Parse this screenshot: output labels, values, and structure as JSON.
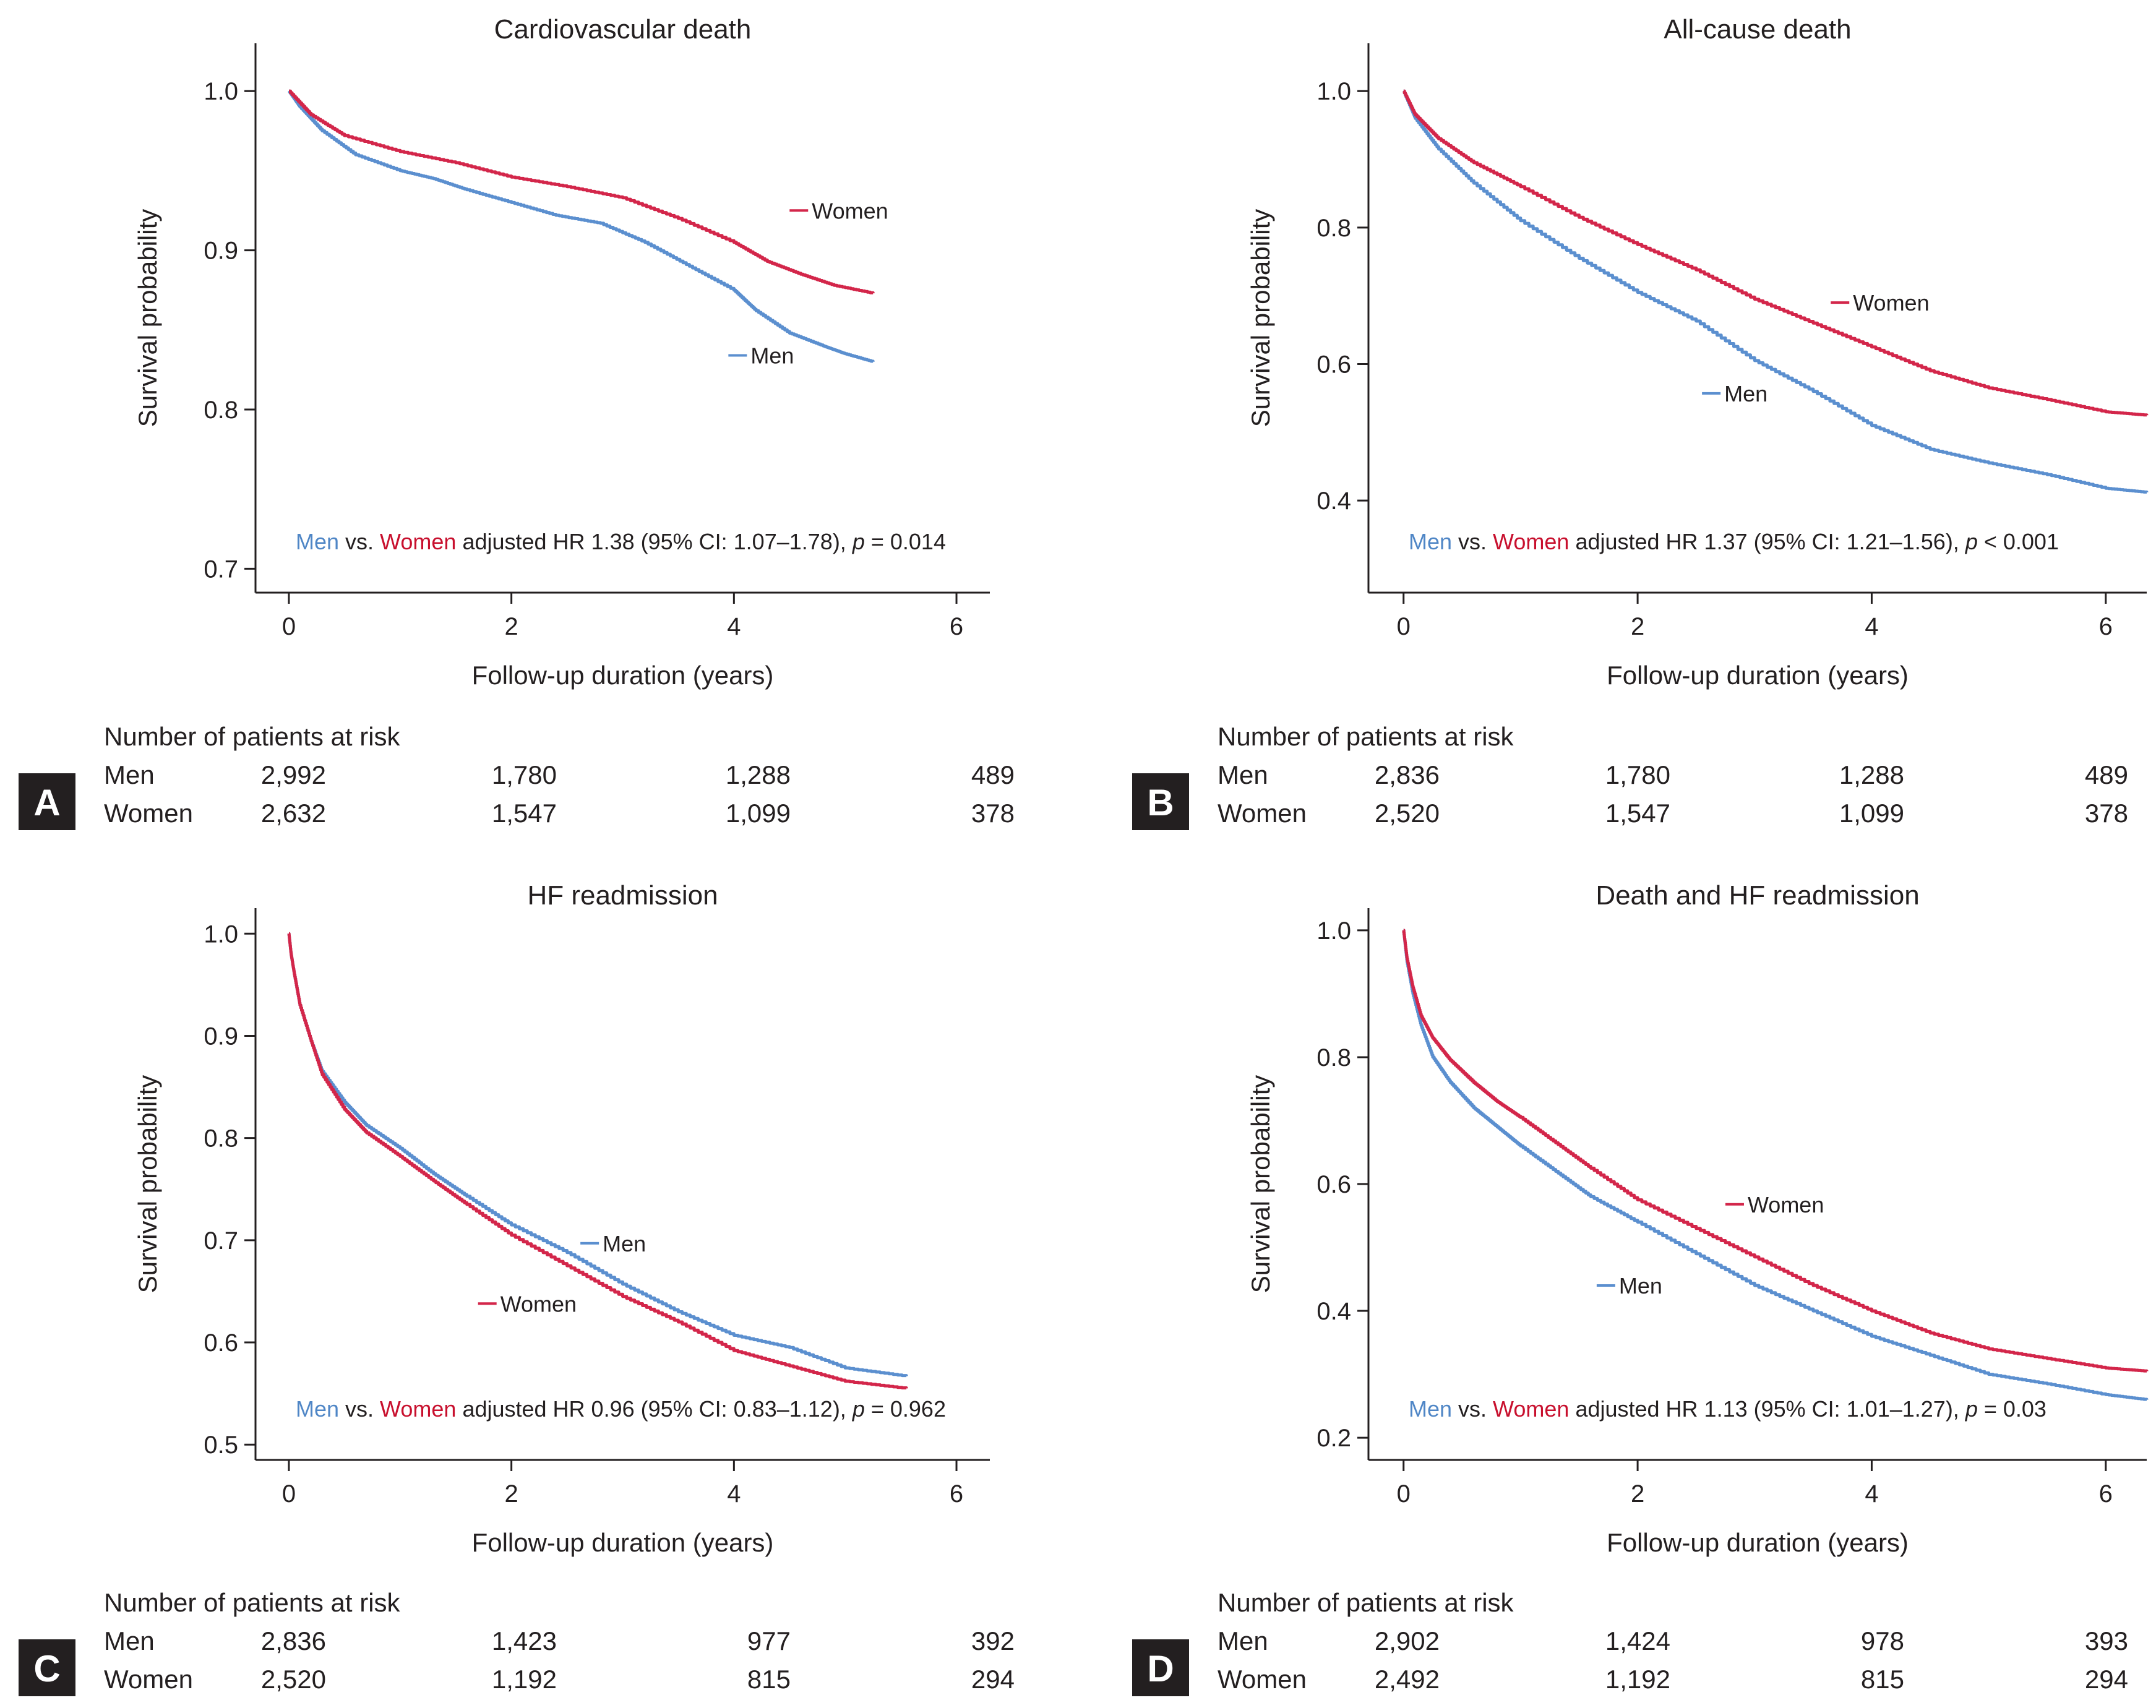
{
  "colors": {
    "men": "#5b8fcf",
    "women": "#d3264a",
    "men_text": "#4f86c6",
    "women_text": "#c8102e",
    "badge": "#231f20"
  },
  "common": {
    "xlabel": "Follow-up duration (years)",
    "ylabel": "Survival probability",
    "risk_header": "Number of patients at risk",
    "men": "Men",
    "women": "Women",
    "vs": "vs."
  },
  "chart_data": [
    {
      "id": "A",
      "type": "line",
      "title": "Cardiovascular death",
      "xlabel": "Follow-up duration (years)",
      "ylabel": "Survival probability",
      "xlim": [
        -0.3,
        6.3
      ],
      "ylim": [
        0.685,
        1.03
      ],
      "xticks": [
        0,
        2,
        4,
        6
      ],
      "yticks": [
        0.7,
        0.8,
        0.9,
        1.0
      ],
      "xtick_labels": [
        "0",
        "2",
        "4",
        "6"
      ],
      "ytick_labels": [
        "0.7",
        "0.8",
        "0.9",
        "1.0"
      ],
      "series": [
        {
          "name": "Men",
          "x": [
            0,
            0.1,
            0.3,
            0.6,
            1.0,
            1.3,
            1.6,
            2.0,
            2.4,
            2.8,
            3.2,
            3.6,
            4.0,
            4.2,
            4.5,
            4.8,
            5.0,
            5.25
          ],
          "y": [
            1.0,
            0.99,
            0.975,
            0.96,
            0.95,
            0.945,
            0.938,
            0.93,
            0.922,
            0.917,
            0.905,
            0.89,
            0.875,
            0.862,
            0.848,
            0.84,
            0.835,
            0.83
          ]
        },
        {
          "name": "Women",
          "x": [
            0,
            0.2,
            0.5,
            1.0,
            1.5,
            2.0,
            2.5,
            3.0,
            3.5,
            4.0,
            4.3,
            4.6,
            4.9,
            5.25
          ],
          "y": [
            1.0,
            0.985,
            0.972,
            0.962,
            0.955,
            0.946,
            0.94,
            0.933,
            0.92,
            0.905,
            0.893,
            0.885,
            0.878,
            0.873
          ]
        }
      ],
      "annotation": {
        "stat": " adjusted HR 1.38 (95% CI: 1.07–1.78), ",
        "p": "p",
        "pval": " = 0.014"
      },
      "legend_labels": [
        {
          "series": "Women",
          "x": 4.5,
          "y": 0.925
        },
        {
          "series": "Men",
          "x": 3.95,
          "y": 0.834
        }
      ],
      "risk_table": {
        "men": [
          "2,992",
          "1,780",
          "1,288",
          "489"
        ],
        "women": [
          "2,632",
          "1,547",
          "1,099",
          "378"
        ]
      }
    },
    {
      "id": "B",
      "type": "line",
      "title": "All-cause death",
      "xlabel": "Follow-up duration (years)",
      "ylabel": "Survival probability",
      "xlim": [
        -0.3,
        6.35
      ],
      "ylim": [
        0.265,
        1.07
      ],
      "xticks": [
        0,
        2,
        4,
        6
      ],
      "yticks": [
        0.4,
        0.6,
        0.8,
        1.0
      ],
      "xtick_labels": [
        "0",
        "2",
        "4",
        "6"
      ],
      "ytick_labels": [
        "0.4",
        "0.6",
        "0.8",
        "1.0"
      ],
      "series": [
        {
          "name": "Men",
          "x": [
            0,
            0.1,
            0.3,
            0.6,
            1.0,
            1.5,
            2.0,
            2.5,
            3.0,
            3.5,
            4.0,
            4.5,
            5.0,
            5.5,
            6.0,
            6.35
          ],
          "y": [
            1.0,
            0.96,
            0.915,
            0.865,
            0.81,
            0.755,
            0.705,
            0.663,
            0.605,
            0.56,
            0.51,
            0.475,
            0.455,
            0.438,
            0.418,
            0.412
          ]
        },
        {
          "name": "Women",
          "x": [
            0,
            0.1,
            0.3,
            0.6,
            1.0,
            1.5,
            2.0,
            2.5,
            3.0,
            3.5,
            4.0,
            4.5,
            5.0,
            5.5,
            6.0,
            6.35
          ],
          "y": [
            1.0,
            0.965,
            0.93,
            0.895,
            0.86,
            0.815,
            0.775,
            0.738,
            0.695,
            0.66,
            0.625,
            0.59,
            0.565,
            0.548,
            0.53,
            0.525
          ]
        }
      ],
      "annotation": {
        "stat": " adjusted HR 1.37 (95% CI: 1.21–1.56), ",
        "p": "p",
        "pval": " < 0.001"
      },
      "legend_labels": [
        {
          "series": "Women",
          "x": 3.65,
          "y": 0.69
        },
        {
          "series": "Men",
          "x": 2.55,
          "y": 0.557
        }
      ],
      "risk_table": {
        "men": [
          "2,836",
          "1,780",
          "1,288",
          "489"
        ],
        "women": [
          "2,520",
          "1,547",
          "1,099",
          "378"
        ]
      }
    },
    {
      "id": "C",
      "type": "line",
      "title": "HF readmission",
      "xlabel": "Follow-up duration (years)",
      "ylabel": "Survival probability",
      "xlim": [
        -0.3,
        6.3
      ],
      "ylim": [
        0.485,
        1.025
      ],
      "xticks": [
        0,
        2,
        4,
        6
      ],
      "yticks": [
        0.5,
        0.6,
        0.7,
        0.8,
        0.9,
        1.0
      ],
      "xtick_labels": [
        "0",
        "2",
        "4",
        "6"
      ],
      "ytick_labels": [
        "0.5",
        "0.6",
        "0.7",
        "0.8",
        "0.9",
        "1.0"
      ],
      "series": [
        {
          "name": "Men",
          "x": [
            0,
            0.02,
            0.05,
            0.1,
            0.2,
            0.3,
            0.5,
            0.7,
            1.0,
            1.3,
            1.6,
            2.0,
            2.5,
            3.0,
            3.5,
            4.0,
            4.5,
            5.0,
            5.55
          ],
          "y": [
            1.0,
            0.98,
            0.96,
            0.93,
            0.895,
            0.865,
            0.835,
            0.812,
            0.79,
            0.765,
            0.743,
            0.715,
            0.688,
            0.657,
            0.63,
            0.607,
            0.595,
            0.575,
            0.567
          ]
        },
        {
          "name": "Women",
          "x": [
            0,
            0.02,
            0.05,
            0.1,
            0.2,
            0.3,
            0.5,
            0.7,
            1.0,
            1.3,
            1.6,
            2.0,
            2.5,
            3.0,
            3.5,
            4.0,
            4.5,
            5.0,
            5.55
          ],
          "y": [
            1.0,
            0.98,
            0.96,
            0.93,
            0.895,
            0.862,
            0.828,
            0.805,
            0.782,
            0.758,
            0.735,
            0.705,
            0.675,
            0.645,
            0.62,
            0.592,
            0.577,
            0.562,
            0.555
          ]
        }
      ],
      "annotation": {
        "stat": " adjusted HR 0.96 (95% CI: 0.83–1.12), ",
        "p": "p",
        "pval": " = 0.962"
      },
      "legend_labels": [
        {
          "series": "Men",
          "x": 2.62,
          "y": 0.697
        },
        {
          "series": "Women",
          "x": 1.7,
          "y": 0.638
        }
      ],
      "risk_table": {
        "men": [
          "2,836",
          "1,423",
          "977",
          "392"
        ],
        "women": [
          "2,520",
          "1,192",
          "815",
          "294"
        ]
      }
    },
    {
      "id": "D",
      "type": "line",
      "title": "Death and HF readmission",
      "xlabel": "Follow-up duration (years)",
      "ylabel": "Survival probability",
      "xlim": [
        -0.3,
        6.35
      ],
      "ylim": [
        0.165,
        1.035
      ],
      "xticks": [
        0,
        2,
        4,
        6
      ],
      "yticks": [
        0.2,
        0.4,
        0.6,
        0.8,
        1.0
      ],
      "xtick_labels": [
        "0",
        "2",
        "4",
        "6"
      ],
      "ytick_labels": [
        "0.2",
        "0.4",
        "0.6",
        "0.8",
        "1.0"
      ],
      "series": [
        {
          "name": "Men",
          "x": [
            0,
            0.03,
            0.08,
            0.15,
            0.25,
            0.4,
            0.6,
            0.8,
            1.0,
            1.3,
            1.6,
            2.0,
            2.5,
            3.0,
            3.5,
            4.0,
            4.5,
            5.0,
            5.5,
            6.0,
            6.35
          ],
          "y": [
            1.0,
            0.95,
            0.9,
            0.85,
            0.8,
            0.76,
            0.72,
            0.69,
            0.66,
            0.62,
            0.58,
            0.54,
            0.49,
            0.44,
            0.4,
            0.36,
            0.33,
            0.3,
            0.285,
            0.268,
            0.26
          ]
        },
        {
          "name": "Women",
          "x": [
            0,
            0.03,
            0.08,
            0.15,
            0.25,
            0.4,
            0.6,
            0.8,
            1.0,
            1.3,
            1.6,
            2.0,
            2.5,
            3.0,
            3.5,
            4.0,
            4.5,
            5.0,
            5.5,
            6.0,
            6.35
          ],
          "y": [
            1.0,
            0.955,
            0.91,
            0.865,
            0.83,
            0.795,
            0.76,
            0.73,
            0.705,
            0.665,
            0.625,
            0.575,
            0.53,
            0.485,
            0.44,
            0.4,
            0.365,
            0.34,
            0.325,
            0.31,
            0.305
          ]
        }
      ],
      "annotation": {
        "stat": " adjusted HR 1.13 (95% CI: 1.01–1.27), ",
        "p": "p",
        "pval": " = 0.03"
      },
      "legend_labels": [
        {
          "series": "Women",
          "x": 2.75,
          "y": 0.568
        },
        {
          "series": "Men",
          "x": 1.65,
          "y": 0.44
        }
      ],
      "risk_table": {
        "men": [
          "2,902",
          "1,424",
          "978",
          "393"
        ],
        "women": [
          "2,492",
          "1,192",
          "815",
          "294"
        ]
      }
    }
  ]
}
